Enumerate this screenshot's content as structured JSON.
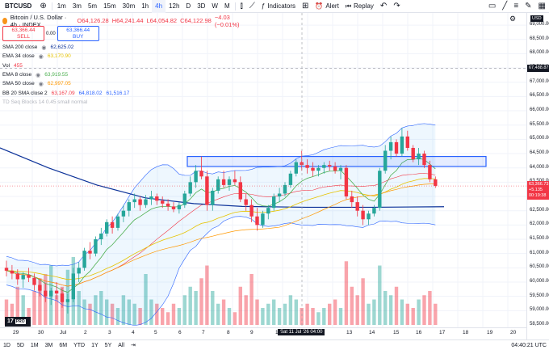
{
  "toolbar": {
    "symbol": "BTCUSD",
    "timeframes": [
      "1m",
      "3m",
      "5m",
      "15m",
      "30m",
      "1h",
      "4h",
      "12h",
      "D",
      "3D",
      "W",
      "M"
    ],
    "active_timeframe": "4h",
    "indicators_label": "Indicators",
    "alert_label": "Alert",
    "replay_label": "Replay"
  },
  "legend": {
    "title": "Bitcoin / U.S. Dollar · 4h · INDEX",
    "open": "O64,126.28",
    "high": "H64,241.44",
    "low": "L64,054.82",
    "close": "C64,122.98",
    "change": "−4.03 (−0.01%)",
    "sell_price": "63,366.44",
    "sell_label": "SELL",
    "buy_price": "63,366.44",
    "buy_label": "BUY",
    "spread": "0.00",
    "indicators": [
      {
        "name": "SMA 200 close",
        "values": [
          "62,625.02"
        ],
        "color": "#0c3299"
      },
      {
        "name": "EMA 34 close",
        "values": [
          "63,170.90"
        ],
        "color": "#e6c300"
      },
      {
        "name": "Vol",
        "values": [
          "455"
        ],
        "color": "#f23645"
      },
      {
        "name": "EMA 8 close",
        "values": [
          "63,919.55"
        ],
        "color": "#4caf50"
      },
      {
        "name": "SMA 50 close",
        "values": [
          "62,997.05"
        ],
        "color": "#ff9800"
      },
      {
        "name": "BB 20 SMA close 2",
        "values": [
          "63,167.09",
          "64,818.02",
          "61,516.17"
        ],
        "color": "#2962ff"
      },
      {
        "name": "TD Seq Blocks 14 0.45 small normal",
        "values": [],
        "color": "#b2b5be"
      }
    ]
  },
  "price_axis": {
    "labels": [
      "69,000.00",
      "68,500.00",
      "68,000.00",
      "67,500.00",
      "67,000.00",
      "66,500.00",
      "66,000.00",
      "65,500.00",
      "65,000.00",
      "64,500.00",
      "64,000.00",
      "63,500.00",
      "63,000.00",
      "62,500.00",
      "62,000.00",
      "61,500.00",
      "61,000.00",
      "60,500.00",
      "60,000.00",
      "59,500.00",
      "59,000.00",
      "58,500.00"
    ],
    "cursor_price": "67,488.87",
    "current_price": "63,366.73",
    "current_change": "+5.135",
    "countdown": "00:19:38"
  },
  "time_axis": {
    "labels": [
      "29",
      "30",
      "Jul",
      "2",
      "3",
      "4",
      "5",
      "6",
      "7",
      "8",
      "9",
      "10",
      "12",
      "13",
      "14",
      "15",
      "16",
      "17",
      "18",
      "19",
      "20"
    ],
    "cursor_label": "Sat 11 Jul '26  04:00"
  },
  "bottom_bar": {
    "ranges": [
      "1D",
      "5D",
      "1M",
      "3M",
      "6M",
      "YTD",
      "1Y",
      "5Y",
      "All"
    ],
    "clock": "04:40:21 UTC"
  },
  "logo": {
    "text": "17",
    "badge": "PRO"
  },
  "chart_data": {
    "type": "candlestick",
    "ylim": [
      58500,
      69200
    ],
    "x_labels": [
      "29",
      "30",
      "Jul",
      "2",
      "3",
      "4",
      "5",
      "6",
      "7",
      "8",
      "9",
      "10",
      "12",
      "13",
      "14",
      "15",
      "16",
      "17",
      "18",
      "19",
      "20"
    ],
    "candles": [
      [
        60500,
        60750,
        60200,
        60400
      ],
      [
        60400,
        60600,
        60100,
        60300
      ],
      [
        60300,
        60450,
        59900,
        60100
      ],
      [
        60100,
        60350,
        59800,
        60250
      ],
      [
        60250,
        60500,
        60000,
        60150
      ],
      [
        60150,
        60300,
        59700,
        59900
      ],
      [
        59900,
        60100,
        59500,
        59700
      ],
      [
        59700,
        59950,
        59300,
        59500
      ],
      [
        59500,
        59800,
        59200,
        59700
      ],
      [
        59700,
        60000,
        59400,
        59600
      ],
      [
        59600,
        59800,
        59100,
        59300
      ],
      [
        59300,
        59600,
        58900,
        59400
      ],
      [
        59400,
        60500,
        59300,
        60300
      ],
      [
        60300,
        60700,
        60000,
        60500
      ],
      [
        60500,
        61200,
        60400,
        61100
      ],
      [
        61100,
        61400,
        60800,
        61000
      ],
      [
        61000,
        61600,
        60900,
        61500
      ],
      [
        61500,
        61900,
        61300,
        61700
      ],
      [
        61700,
        62200,
        61600,
        62100
      ],
      [
        62100,
        62300,
        61700,
        61900
      ],
      [
        61900,
        62400,
        61800,
        62300
      ],
      [
        62300,
        62700,
        62100,
        62500
      ],
      [
        62500,
        62900,
        62300,
        62800
      ],
      [
        62800,
        63100,
        62600,
        62900
      ],
      [
        62900,
        63000,
        62500,
        62700
      ],
      [
        62700,
        63050,
        62600,
        62900
      ],
      [
        62900,
        63200,
        62700,
        63000
      ],
      [
        63000,
        63100,
        62700,
        62850
      ],
      [
        62850,
        63000,
        62600,
        62750
      ],
      [
        62750,
        62900,
        62500,
        62650
      ],
      [
        62650,
        62800,
        62450,
        62550
      ],
      [
        62550,
        62800,
        62400,
        62700
      ],
      [
        62700,
        63200,
        62600,
        63100
      ],
      [
        63100,
        63700,
        63000,
        63500
      ],
      [
        63500,
        64100,
        63300,
        63900
      ],
      [
        63900,
        64400,
        63600,
        63700
      ],
      [
        63700,
        63900,
        62500,
        62700
      ],
      [
        62700,
        63300,
        62500,
        63200
      ],
      [
        63200,
        63700,
        63100,
        63600
      ],
      [
        63600,
        63900,
        63300,
        63400
      ],
      [
        63400,
        63700,
        63200,
        63600
      ],
      [
        63600,
        63900,
        63400,
        63500
      ],
      [
        63500,
        63700,
        62800,
        62900
      ],
      [
        62900,
        63100,
        62500,
        62700
      ],
      [
        62700,
        62900,
        62100,
        62300
      ],
      [
        62300,
        62600,
        61800,
        62000
      ],
      [
        62000,
        62500,
        61900,
        62400
      ],
      [
        62400,
        62700,
        62200,
        62600
      ],
      [
        62600,
        63100,
        62500,
        63000
      ],
      [
        63000,
        63300,
        62800,
        63100
      ],
      [
        63100,
        63500,
        63000,
        63400
      ],
      [
        63400,
        63900,
        63300,
        63800
      ],
      [
        63800,
        64300,
        63700,
        64200
      ],
      [
        64200,
        64600,
        63900,
        64100
      ],
      [
        64100,
        64300,
        63800,
        64000
      ],
      [
        64000,
        64200,
        63700,
        63900
      ],
      [
        63900,
        64100,
        63700,
        64000
      ],
      [
        64000,
        64200,
        63800,
        64100
      ],
      [
        64100,
        64250,
        63900,
        64050
      ],
      [
        64050,
        64200,
        63800,
        63900
      ],
      [
        63900,
        64100,
        63600,
        64000
      ],
      [
        64000,
        64100,
        62900,
        63000
      ],
      [
        63000,
        63200,
        62600,
        62800
      ],
      [
        62800,
        63000,
        62300,
        62500
      ],
      [
        62500,
        62700,
        62000,
        62200
      ],
      [
        62200,
        62500,
        62000,
        62400
      ],
      [
        62400,
        62700,
        62300,
        62600
      ],
      [
        62600,
        64000,
        62500,
        63900
      ],
      [
        63900,
        64800,
        63800,
        64600
      ],
      [
        64600,
        65100,
        64300,
        64900
      ],
      [
        64900,
        65000,
        64400,
        64500
      ],
      [
        64500,
        65400,
        64400,
        65100
      ],
      [
        65100,
        65300,
        64600,
        64700
      ],
      [
        64700,
        64800,
        64200,
        64300
      ],
      [
        64300,
        64700,
        64100,
        64500
      ],
      [
        64500,
        64600,
        64000,
        64100
      ],
      [
        64100,
        64250,
        63500,
        63600
      ],
      [
        63600,
        63700,
        63300,
        63370
      ]
    ],
    "volumes": [
      30,
      25,
      45,
      35,
      20,
      40,
      55,
      60,
      70,
      35,
      45,
      65,
      80,
      40,
      30,
      25,
      35,
      40,
      30,
      25,
      20,
      35,
      30,
      25,
      20,
      60,
      30,
      25,
      20,
      15,
      25,
      20,
      35,
      45,
      40,
      55,
      70,
      40,
      25,
      30,
      20,
      15,
      45,
      35,
      60,
      30,
      20,
      25,
      30,
      20,
      25,
      35,
      30,
      20,
      25,
      20,
      15,
      20,
      25,
      30,
      20,
      75,
      45,
      35,
      55,
      25,
      30,
      70,
      40,
      35,
      45,
      30,
      25,
      20,
      30,
      35,
      40,
      25
    ],
    "price_box": {
      "top": 64400,
      "bottom": 64050
    }
  }
}
